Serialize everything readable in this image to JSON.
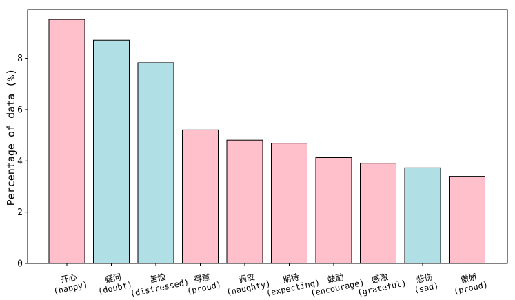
{
  "chart_data": {
    "type": "bar",
    "title": "",
    "xlabel": "",
    "ylabel": "Percentage of data (%)",
    "ylim": [
      0,
      9.9
    ],
    "yticks": [
      0,
      2,
      4,
      6,
      8
    ],
    "grid": false,
    "colors": {
      "pink": "#FFC0CB",
      "blue": "#B0E0E6",
      "edge": "#000000"
    },
    "categories": [
      {
        "zh": "开心",
        "en": "(happy)",
        "color": "pink"
      },
      {
        "zh": "疑问",
        "en": "(doubt)",
        "color": "blue"
      },
      {
        "zh": "苦恼",
        "en": "(distressed)",
        "color": "blue"
      },
      {
        "zh": "得意",
        "en": "(proud)",
        "color": "pink"
      },
      {
        "zh": "调皮",
        "en": "(naughty)",
        "color": "pink"
      },
      {
        "zh": "期待",
        "en": "(expecting)",
        "color": "pink"
      },
      {
        "zh": "鼓励",
        "en": "(encourage)",
        "color": "pink"
      },
      {
        "zh": "感激",
        "en": "(grateful)",
        "color": "pink"
      },
      {
        "zh": "悲伤",
        "en": "(sad)",
        "color": "blue"
      },
      {
        "zh": "傲娇",
        "en": "(proud)",
        "color": "pink"
      }
    ],
    "values": [
      9.52,
      8.71,
      7.83,
      5.21,
      4.81,
      4.69,
      4.13,
      3.91,
      3.73,
      3.4
    ]
  }
}
